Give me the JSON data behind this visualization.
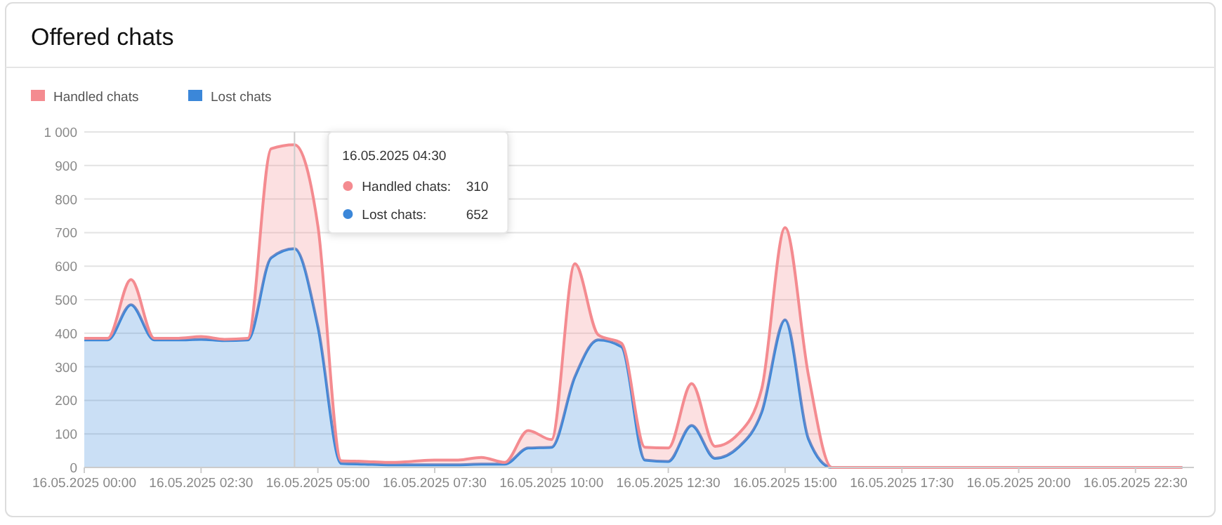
{
  "chart_data": {
    "type": "area",
    "title": "Offered chats",
    "stacked": true,
    "legend": "top left",
    "grid": "y",
    "marker": "none",
    "line_style": "solid",
    "x": [
      "2025-05-16T00:00",
      "2025-05-16T00:30",
      "2025-05-16T01:00",
      "2025-05-16T01:30",
      "2025-05-16T02:00",
      "2025-05-16T02:30",
      "2025-05-16T03:00",
      "2025-05-16T03:30",
      "2025-05-16T04:00",
      "2025-05-16T04:30",
      "2025-05-16T05:00",
      "2025-05-16T05:30",
      "2025-05-16T06:00",
      "2025-05-16T06:30",
      "2025-05-16T07:00",
      "2025-05-16T07:30",
      "2025-05-16T08:00",
      "2025-05-16T08:30",
      "2025-05-16T09:00",
      "2025-05-16T09:30",
      "2025-05-16T10:00",
      "2025-05-16T10:30",
      "2025-05-16T11:00",
      "2025-05-16T11:30",
      "2025-05-16T12:00",
      "2025-05-16T12:30",
      "2025-05-16T13:00",
      "2025-05-16T13:30",
      "2025-05-16T14:00",
      "2025-05-16T14:30",
      "2025-05-16T15:00",
      "2025-05-16T15:30",
      "2025-05-16T16:00",
      "2025-05-16T16:30",
      "2025-05-16T17:00",
      "2025-05-16T17:30",
      "2025-05-16T18:00",
      "2025-05-16T18:30",
      "2025-05-16T19:00",
      "2025-05-16T19:30",
      "2025-05-16T20:00",
      "2025-05-16T20:30",
      "2025-05-16T21:00",
      "2025-05-16T21:30",
      "2025-05-16T22:00",
      "2025-05-16T22:30",
      "2025-05-16T23:00",
      "2025-05-16T23:30"
    ],
    "series": [
      {
        "name": "Lost chats",
        "color": "#3b87d9",
        "values": [
          380,
          380,
          485,
          380,
          380,
          382,
          378,
          380,
          625,
          652,
          420,
          12,
          10,
          8,
          8,
          8,
          8,
          10,
          10,
          58,
          60,
          270,
          380,
          360,
          22,
          18,
          125,
          27,
          60,
          165,
          440,
          85,
          0,
          0,
          0,
          0,
          0,
          0,
          0,
          0,
          0,
          0,
          0,
          0,
          0,
          0,
          0,
          0
        ]
      },
      {
        "name": "Handled chats",
        "color": "#f48b90",
        "values": [
          5,
          5,
          75,
          5,
          5,
          8,
          4,
          5,
          325,
          310,
          300,
          8,
          8,
          7,
          10,
          14,
          14,
          20,
          5,
          52,
          23,
          337,
          15,
          10,
          38,
          40,
          125,
          36,
          40,
          70,
          275,
          190,
          0,
          0,
          0,
          0,
          0,
          0,
          0,
          0,
          0,
          0,
          0,
          0,
          0,
          0,
          0,
          0
        ]
      }
    ],
    "xlim": [
      "2025-05-16T00:00",
      "2025-05-16T23:45"
    ],
    "xticks": [
      {
        "value": "2025-05-16T00:00",
        "label": "16.05.2025 00:00"
      },
      {
        "value": "2025-05-16T02:30",
        "label": "16.05.2025 02:30"
      },
      {
        "value": "2025-05-16T05:00",
        "label": "16.05.2025 05:00"
      },
      {
        "value": "2025-05-16T07:30",
        "label": "16.05.2025 07:30"
      },
      {
        "value": "2025-05-16T10:00",
        "label": "16.05.2025 10:00"
      },
      {
        "value": "2025-05-16T12:30",
        "label": "16.05.2025 12:30"
      },
      {
        "value": "2025-05-16T15:00",
        "label": "16.05.2025 15:00"
      },
      {
        "value": "2025-05-16T17:30",
        "label": "16.05.2025 17:30"
      },
      {
        "value": "2025-05-16T20:00",
        "label": "16.05.2025 20:00"
      },
      {
        "value": "2025-05-16T22:30",
        "label": "16.05.2025 22:30"
      }
    ],
    "ylim": [
      0,
      1000
    ],
    "yticks": [
      0,
      100,
      200,
      300,
      400,
      500,
      600,
      700,
      800,
      900,
      {
        "value": 1000,
        "label": "1 000"
      }
    ],
    "ref_lines": [
      {
        "axis": "x",
        "value": "2025-05-16T04:30",
        "label": null,
        "color": "#cccccc"
      }
    ],
    "annotations": [
      "16.05.2025 04:30",
      "Handled chats:",
      "310",
      "Lost chats:",
      "652"
    ]
  }
}
